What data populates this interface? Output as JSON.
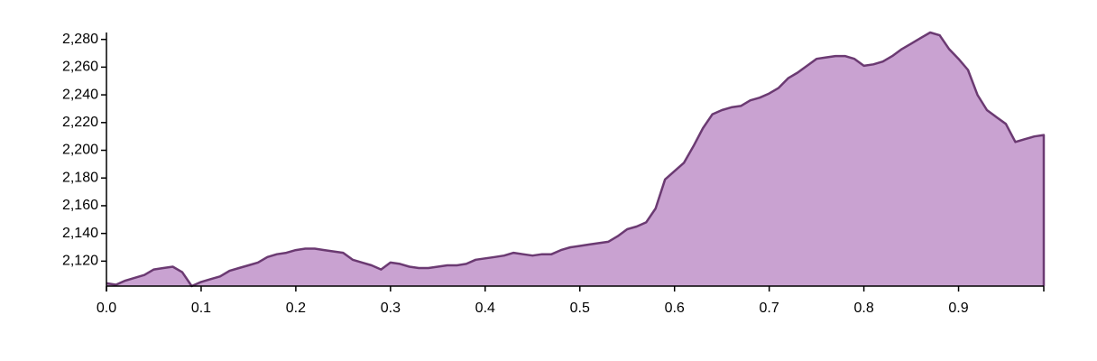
{
  "chart_data": {
    "type": "area",
    "title": "",
    "xlabel": "",
    "ylabel": "",
    "xlim": [
      0,
      0.99
    ],
    "ylim": [
      2102,
      2285
    ],
    "x_ticks": [
      0.0,
      0.1,
      0.2,
      0.3,
      0.4,
      0.5,
      0.6,
      0.7,
      0.8,
      0.9
    ],
    "x_tick_labels": [
      "0.0",
      "0.1",
      "0.2",
      "0.3",
      "0.4",
      "0.5",
      "0.6",
      "0.7",
      "0.8",
      "0.9"
    ],
    "y_ticks": [
      2120,
      2140,
      2160,
      2180,
      2200,
      2220,
      2240,
      2260,
      2280
    ],
    "y_tick_labels": [
      "2,120",
      "2,140",
      "2,160",
      "2,180",
      "2,200",
      "2,220",
      "2,240",
      "2,260",
      "2,280"
    ],
    "grid": false,
    "colors": {
      "fill": "#c9a2d1",
      "stroke": "#6b3a72",
      "axis": "#000000"
    },
    "series": [
      {
        "x": [
          0.0,
          0.01,
          0.02,
          0.03,
          0.04,
          0.05,
          0.06,
          0.07,
          0.08,
          0.09,
          0.1,
          0.11,
          0.12,
          0.13,
          0.14,
          0.15,
          0.16,
          0.17,
          0.18,
          0.19,
          0.2,
          0.21,
          0.22,
          0.23,
          0.24,
          0.25,
          0.26,
          0.27,
          0.28,
          0.29,
          0.3,
          0.31,
          0.32,
          0.33,
          0.34,
          0.35,
          0.36,
          0.37,
          0.38,
          0.39,
          0.4,
          0.41,
          0.42,
          0.43,
          0.44,
          0.45,
          0.46,
          0.47,
          0.48,
          0.49,
          0.5,
          0.51,
          0.52,
          0.53,
          0.54,
          0.55,
          0.56,
          0.57,
          0.58,
          0.59,
          0.6,
          0.61,
          0.62,
          0.63,
          0.64,
          0.65,
          0.66,
          0.67,
          0.68,
          0.69,
          0.7,
          0.71,
          0.72,
          0.73,
          0.74,
          0.75,
          0.76,
          0.77,
          0.78,
          0.79,
          0.8,
          0.81,
          0.82,
          0.83,
          0.84,
          0.85,
          0.86,
          0.87,
          0.88,
          0.89,
          0.9,
          0.91,
          0.92,
          0.93,
          0.94,
          0.95,
          0.96,
          0.97,
          0.98,
          0.99
        ],
        "y": [
          2104,
          2103,
          2106,
          2108,
          2110,
          2114,
          2115,
          2116,
          2112,
          2102,
          2105,
          2107,
          2109,
          2113,
          2115,
          2117,
          2119,
          2123,
          2125,
          2126,
          2128,
          2129,
          2129,
          2128,
          2127,
          2126,
          2121,
          2119,
          2117,
          2114,
          2119,
          2118,
          2116,
          2115,
          2115,
          2116,
          2117,
          2117,
          2118,
          2121,
          2122,
          2123,
          2124,
          2126,
          2125,
          2124,
          2125,
          2125,
          2128,
          2130,
          2131,
          2132,
          2133,
          2134,
          2138,
          2143,
          2145,
          2148,
          2158,
          2179,
          2185,
          2191,
          2203,
          2216,
          2226,
          2229,
          2231,
          2232,
          2236,
          2238,
          2241,
          2245,
          2252,
          2256,
          2261,
          2266,
          2267,
          2268,
          2268,
          2266,
          2261,
          2262,
          2264,
          2268,
          2273,
          2277,
          2281,
          2285,
          2283,
          2273,
          2266,
          2258,
          2240,
          2229,
          2224,
          2219,
          2206,
          2208,
          2210,
          2211
        ]
      }
    ]
  }
}
